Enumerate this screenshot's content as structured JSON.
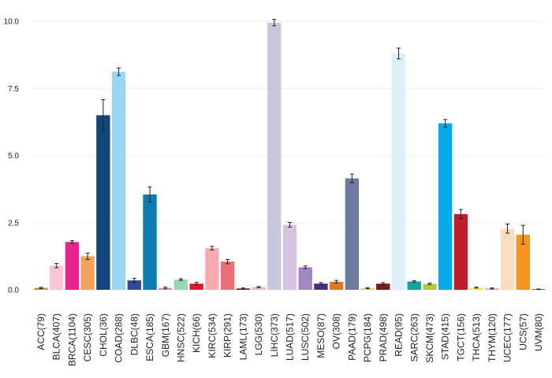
{
  "chart_data": {
    "type": "bar",
    "title": "",
    "xlabel": "",
    "ylabel": "",
    "ylim": [
      0,
      10.5
    ],
    "y_ticks": [
      "0.0",
      "2.5",
      "5.0",
      "7.5",
      "10.0"
    ],
    "y_tick_values": [
      0,
      2.5,
      5,
      7.5,
      10
    ],
    "grid": "horizontal",
    "legend": "none",
    "categories": [
      "ACC(79)",
      "BLCA(407)",
      "BRCA(1104)",
      "CESC(305)",
      "CHOL(36)",
      "COAD(288)",
      "DLBC(48)",
      "ESCA(185)",
      "GBM(167)",
      "HNSC(522)",
      "KICH(66)",
      "KIRC(534)",
      "KIRP(291)",
      "LAML(173)",
      "LGG(530)",
      "LIHC(373)",
      "LUAD(517)",
      "LUSC(502)",
      "MESO(87)",
      "OV(308)",
      "PAAD(179)",
      "PCPG(184)",
      "PRAD(498)",
      "READ(95)",
      "SARC(263)",
      "SKCM(473)",
      "STAD(415)",
      "TGCT(156)",
      "THCA(513)",
      "THYM(120)",
      "UCEC(177)",
      "UCS(57)",
      "UVM(80)"
    ],
    "values": [
      0.07,
      0.9,
      1.78,
      1.25,
      6.5,
      8.12,
      0.35,
      3.55,
      0.07,
      0.38,
      0.23,
      1.55,
      1.05,
      0.05,
      0.1,
      9.95,
      2.42,
      0.84,
      0.23,
      0.3,
      4.15,
      0.06,
      0.23,
      8.8,
      0.31,
      0.22,
      6.2,
      2.82,
      0.08,
      0.05,
      2.28,
      2.05,
      0.02
    ],
    "errors": [
      0.02,
      0.08,
      0.05,
      0.12,
      0.58,
      0.14,
      0.08,
      0.28,
      0.03,
      0.03,
      0.05,
      0.07,
      0.08,
      0.02,
      0.02,
      0.12,
      0.09,
      0.05,
      0.04,
      0.05,
      0.16,
      0.02,
      0.04,
      0.2,
      0.03,
      0.03,
      0.14,
      0.17,
      0.02,
      0.02,
      0.17,
      0.35,
      0.01
    ],
    "colors": [
      "#b59a2b",
      "#f7c6d6",
      "#e8238e",
      "#f2a25c",
      "#11467a",
      "#99d8f5",
      "#2f4c9c",
      "#0a7bb4",
      "#c596c5",
      "#98d6b4",
      "#e11b23",
      "#f6aab0",
      "#ea6e76",
      "#6a2c1d",
      "#e8b8d4",
      "#c8c8dc",
      "#d5c3e0",
      "#a287c0",
      "#4d2c7e",
      "#df7a22",
      "#6d7ba1",
      "#e9dc48",
      "#7b1d1f",
      "#dbf0fb",
      "#12a39d",
      "#a9ce3d",
      "#04aaea",
      "#be1d2e",
      "#f8ec30",
      "#d2a3c5",
      "#f9ddbc",
      "#f7931e",
      "#333333"
    ]
  }
}
